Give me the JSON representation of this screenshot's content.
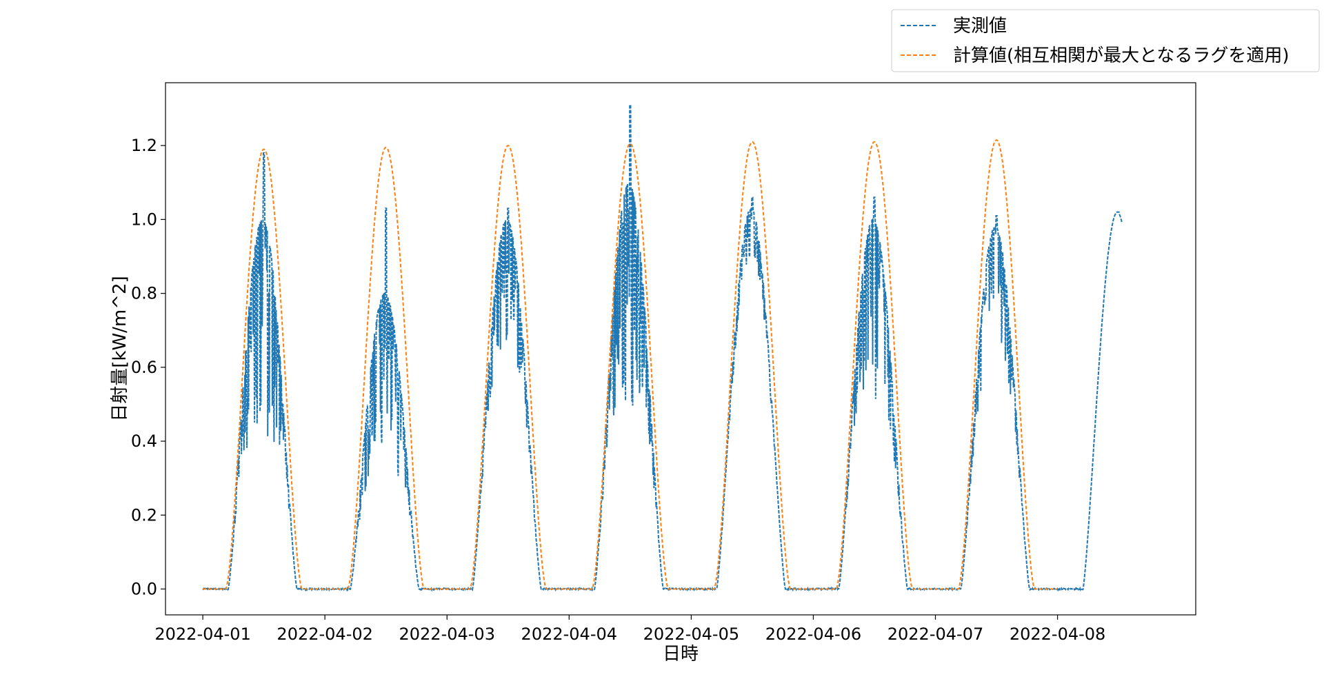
{
  "chart_data": {
    "type": "line",
    "title": "",
    "xlabel": "日時",
    "ylabel": "日射量[kW/m^2]",
    "x_ticks": [
      "2022-04-01",
      "2022-04-02",
      "2022-04-03",
      "2022-04-04",
      "2022-04-05",
      "2022-04-06",
      "2022-04-07",
      "2022-04-08"
    ],
    "y_ticks": [
      "0.0",
      "0.2",
      "0.4",
      "0.6",
      "0.8",
      "1.0",
      "1.2"
    ],
    "xlim": [
      "2022-03-31T16:40",
      "2022-04-09T03:10"
    ],
    "ylim": [
      -0.07,
      1.37
    ],
    "grid": false,
    "legend_position": "upper-right (outside plot)",
    "series": [
      {
        "name": "実測値",
        "color": "#1f77b4",
        "line_style": "dashed",
        "daily_peak_time": [
          "2022-04-01T12:00",
          "2022-04-02T12:00",
          "2022-04-03T12:00",
          "2022-04-04T12:00",
          "2022-04-05T12:00",
          "2022-04-06T12:00",
          "2022-04-07T12:00",
          "2022-04-08T12:00"
        ],
        "daily_peak": [
          1.18,
          1.03,
          1.03,
          1.31,
          1.06,
          1.06,
          1.01,
          1.02
        ],
        "daily_typical_max": [
          1.0,
          0.8,
          1.0,
          1.1,
          1.03,
          1.0,
          0.98,
          1.02
        ],
        "variability": [
          0.55,
          0.5,
          0.3,
          0.55,
          0.12,
          0.45,
          0.3,
          0.0
        ],
        "sunrise": [
          "2022-04-01T05:00",
          "2022-04-02T05:00",
          "2022-04-03T05:00",
          "2022-04-04T05:00",
          "2022-04-05T05:00",
          "2022-04-06T05:00",
          "2022-04-07T05:00",
          "2022-04-08T05:00"
        ],
        "sunset": [
          "2022-04-01T18:30",
          "2022-04-02T18:30",
          "2022-04-03T18:30",
          "2022-04-04T18:30",
          "2022-04-05T18:30",
          "2022-04-06T18:30",
          "2022-04-07T18:30"
        ],
        "end": "2022-04-08T12:40"
      },
      {
        "name": "計算値(相互相関が最大となるラグを適用)",
        "color": "#ff7f0e",
        "line_style": "dashed",
        "daily_peak_time": [
          "2022-04-01T12:00",
          "2022-04-02T12:00",
          "2022-04-03T12:00",
          "2022-04-04T12:00",
          "2022-04-05T12:00",
          "2022-04-06T12:00",
          "2022-04-07T12:00"
        ],
        "daily_peak": [
          1.19,
          1.195,
          1.2,
          1.205,
          1.21,
          1.21,
          1.215
        ],
        "sunrise": [
          "2022-04-01T04:30",
          "2022-04-02T04:30",
          "2022-04-03T04:30",
          "2022-04-04T04:30",
          "2022-04-05T04:30",
          "2022-04-06T04:30",
          "2022-04-07T04:30"
        ],
        "sunset": [
          "2022-04-01T19:30",
          "2022-04-02T19:30",
          "2022-04-03T19:30",
          "2022-04-04T19:30",
          "2022-04-05T19:30",
          "2022-04-06T19:30",
          "2022-04-07T19:30"
        ],
        "end": "2022-04-08T00:00"
      }
    ]
  }
}
